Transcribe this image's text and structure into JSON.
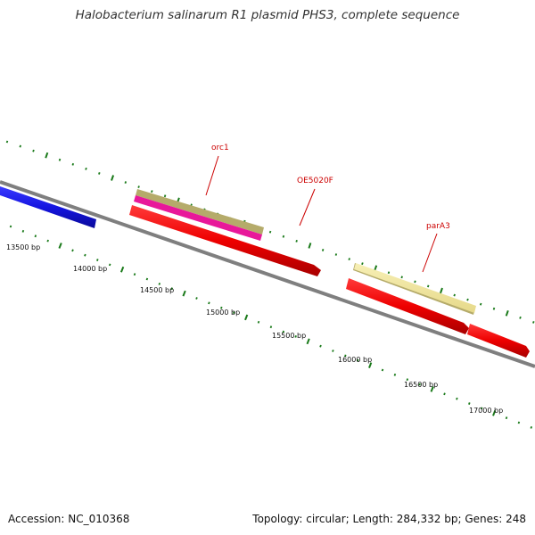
{
  "title": "Halobacterium salinarum R1 plasmid PHS3, complete sequence",
  "footer": {
    "accession": "Accession: NC_010368",
    "topology": "Topology: circular; Length: 284,332 bp; Genes: 248"
  },
  "colors": {
    "backbone": "#7f7f7f",
    "ticks": "#1a7a1a",
    "gene_label": "#cc0000",
    "forward_feature_olive": "#b5ab6a",
    "forward_feature_magenta": "#e8189a",
    "forward_feature_yellow": "#f3e9a0",
    "reverse_gene_red": "#ee0000",
    "reverse_gene_blue": "#1414e0"
  },
  "ticks": {
    "labels": [
      "13500 bp",
      "14000 bp",
      "14500 bp",
      "15000 bp",
      "15500 bp",
      "16000 bp",
      "16500 bp",
      "17000 bp"
    ]
  },
  "genes": [
    {
      "name": "orc1"
    },
    {
      "name": "OE5020F"
    },
    {
      "name": "parA3"
    }
  ]
}
